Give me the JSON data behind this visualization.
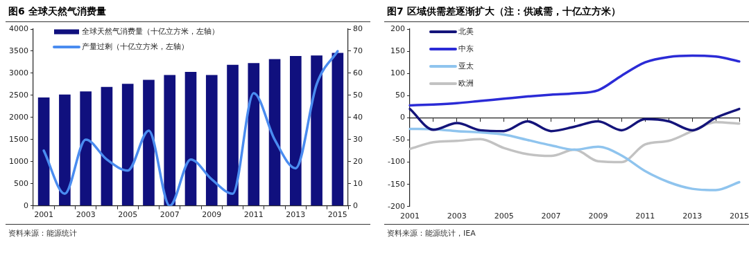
{
  "chart_data": [
    {
      "type": "bar",
      "title": "图6  全球天然气消费量",
      "categories": [
        "2001",
        null,
        "2003",
        null,
        "2005",
        null,
        "2007",
        null,
        "2009",
        null,
        "2011",
        null,
        "2013",
        null,
        "2015"
      ],
      "series": [
        {
          "name": "全球天然气消费量（十亿立方米，左轴）",
          "type": "bar",
          "color": "#10107e",
          "values": [
            2450,
            2520,
            2590,
            2690,
            2760,
            2850,
            2960,
            3030,
            2960,
            3190,
            3230,
            3320,
            3390,
            3400,
            3460
          ]
        },
        {
          "name": "产量过剩（十亿立方米，左轴）",
          "type": "line",
          "axis": "y2",
          "color": "#4a8cf0",
          "values": [
            25,
            5.5,
            30,
            21,
            16,
            34,
            0,
            21,
            12,
            5.5,
            51,
            30,
            17,
            55,
            70
          ]
        }
      ],
      "ylim": [
        0,
        4000
      ],
      "yticks": [
        0,
        500,
        1000,
        1500,
        2000,
        2500,
        3000,
        3500,
        4000
      ],
      "y2lim": [
        0,
        80
      ],
      "y2ticks": [
        0,
        10,
        20,
        30,
        40,
        50,
        60,
        70,
        80
      ],
      "legend": "top left",
      "marker": "none",
      "annotations": [
        "资料来源：能源统计"
      ]
    },
    {
      "type": "line",
      "title": "图7  区域供需差逐渐扩大（注：供减需，十亿立方米）",
      "categories": [
        "2001",
        null,
        "2003",
        null,
        "2005",
        null,
        "2007",
        null,
        "2009",
        null,
        "2011",
        null,
        "2013",
        null,
        "2015"
      ],
      "series": [
        {
          "name": "北美",
          "color": "#14147a",
          "values": [
            20,
            -27,
            -12,
            -28,
            -30,
            -8,
            -30,
            -20,
            -8,
            -28,
            -3,
            -8,
            -28,
            0,
            20
          ]
        },
        {
          "name": "中东",
          "color": "#2b2bd6",
          "values": [
            28,
            30,
            33,
            38,
            43,
            48,
            52,
            55,
            62,
            95,
            125,
            137,
            140,
            138,
            127
          ]
        },
        {
          "name": "亚太",
          "color": "#8fc4ee",
          "values": [
            -25,
            -26,
            -30,
            -33,
            -38,
            -50,
            -62,
            -72,
            -65,
            -85,
            -120,
            -145,
            -160,
            -163,
            -145
          ]
        },
        {
          "name": "欧洲",
          "color": "#c2c2c2",
          "values": [
            -70,
            -55,
            -52,
            -48,
            -68,
            -82,
            -86,
            -72,
            -98,
            -100,
            -60,
            -52,
            -30,
            -10,
            -13
          ]
        }
      ],
      "ylim": [
        -200,
        200
      ],
      "yticks": [
        -200,
        -150,
        -100,
        -50,
        0,
        50,
        100,
        150,
        200
      ],
      "legend": "top left",
      "marker": "none",
      "annotations": [
        "资料来源：能源统计，IEA"
      ]
    }
  ]
}
